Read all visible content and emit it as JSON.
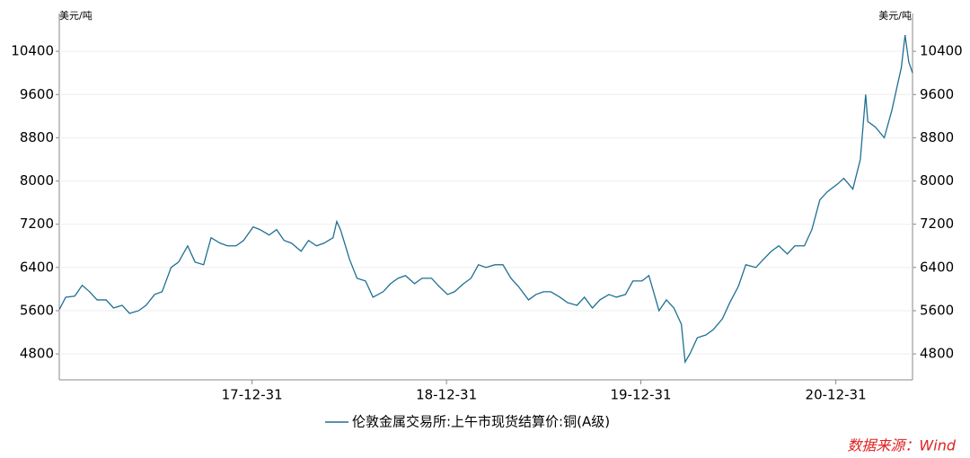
{
  "chart_data": {
    "type": "line",
    "y_label": "美元/吨",
    "y2_label": "美元/吨",
    "source": "数据来源：Wind",
    "grid": true,
    "x": [
      "2017-01-03",
      "2017-01-15",
      "2017-02-01",
      "2017-02-15",
      "2017-03-01",
      "2017-03-15",
      "2017-04-01",
      "2017-04-15",
      "2017-05-01",
      "2017-05-15",
      "2017-06-01",
      "2017-06-15",
      "2017-07-01",
      "2017-07-15",
      "2017-08-01",
      "2017-08-15",
      "2017-09-01",
      "2017-09-15",
      "2017-10-01",
      "2017-10-15",
      "2017-11-01",
      "2017-11-15",
      "2017-12-01",
      "2017-12-15",
      "2018-01-02",
      "2018-01-15",
      "2018-02-01",
      "2018-02-15",
      "2018-03-01",
      "2018-03-15",
      "2018-04-02",
      "2018-04-16",
      "2018-05-01",
      "2018-05-15",
      "2018-06-01",
      "2018-06-08",
      "2018-06-15",
      "2018-07-02",
      "2018-07-16",
      "2018-08-01",
      "2018-08-15",
      "2018-09-03",
      "2018-09-17",
      "2018-10-01",
      "2018-10-15",
      "2018-11-01",
      "2018-11-15",
      "2018-12-03",
      "2018-12-17",
      "2019-01-02",
      "2019-01-15",
      "2019-02-01",
      "2019-02-15",
      "2019-03-01",
      "2019-03-15",
      "2019-04-01",
      "2019-04-16",
      "2019-05-01",
      "2019-05-15",
      "2019-06-03",
      "2019-06-17",
      "2019-07-01",
      "2019-07-15",
      "2019-08-01",
      "2019-08-15",
      "2019-09-02",
      "2019-09-16",
      "2019-10-01",
      "2019-10-15",
      "2019-11-01",
      "2019-11-15",
      "2019-12-02",
      "2019-12-16",
      "2020-01-02",
      "2020-01-15",
      "2020-02-03",
      "2020-02-17",
      "2020-03-02",
      "2020-03-16",
      "2020-03-23",
      "2020-04-01",
      "2020-04-15",
      "2020-05-01",
      "2020-05-15",
      "2020-06-01",
      "2020-06-15",
      "2020-07-01",
      "2020-07-15",
      "2020-08-03",
      "2020-08-17",
      "2020-09-01",
      "2020-09-15",
      "2020-10-01",
      "2020-10-15",
      "2020-11-02",
      "2020-11-16",
      "2020-12-01",
      "2020-12-15",
      "2021-01-04",
      "2021-01-15",
      "2021-02-01",
      "2021-02-15",
      "2021-02-25",
      "2021-03-01",
      "2021-03-15",
      "2021-04-01",
      "2021-04-15",
      "2021-05-03",
      "2021-05-10",
      "2021-05-17",
      "2021-05-24"
    ],
    "series": [
      {
        "name": "伦敦金属交易所:上午市现货结算价:铜(A级)",
        "color": "#1f6f93",
        "values": [
          5620,
          5850,
          5870,
          6070,
          5950,
          5800,
          5800,
          5650,
          5700,
          5550,
          5600,
          5700,
          5900,
          5950,
          6400,
          6500,
          6800,
          6500,
          6450,
          6950,
          6850,
          6800,
          6800,
          6900,
          7150,
          7100,
          7000,
          7100,
          6900,
          6850,
          6700,
          6900,
          6800,
          6850,
          6950,
          7250,
          7100,
          6550,
          6200,
          6150,
          5850,
          5950,
          6100,
          6200,
          6250,
          6100,
          6200,
          6200,
          6050,
          5900,
          5950,
          6100,
          6200,
          6450,
          6400,
          6450,
          6450,
          6200,
          6050,
          5800,
          5900,
          5950,
          5950,
          5850,
          5750,
          5700,
          5850,
          5650,
          5800,
          5900,
          5850,
          5900,
          6150,
          6150,
          6250,
          5600,
          5800,
          5650,
          5350,
          4650,
          4800,
          5100,
          5150,
          5250,
          5450,
          5750,
          6050,
          6450,
          6400,
          6550,
          6700,
          6800,
          6650,
          6800,
          6800,
          7100,
          7650,
          7800,
          7950,
          8050,
          7850,
          8400,
          9600,
          9100,
          9000,
          8800,
          9300,
          10100,
          10700,
          10200,
          10000
        ]
      }
    ],
    "xlim": [
      "2017-01-03",
      "2021-05-24"
    ],
    "xticks": [
      {
        "value": "2017-12-31",
        "label": "17-12-31"
      },
      {
        "value": "2018-12-31",
        "label": "18-12-31"
      },
      {
        "value": "2019-12-31",
        "label": "19-12-31"
      },
      {
        "value": "2020-12-31",
        "label": "20-12-31"
      }
    ],
    "ylim": [
      4320,
      11100
    ],
    "yticks": [
      4800,
      5600,
      6400,
      7200,
      8000,
      8800,
      9600,
      10400
    ],
    "y2lim": [
      4320,
      11100
    ],
    "y2ticks": [
      4800,
      5600,
      6400,
      7200,
      8000,
      8800,
      9600,
      10400
    ]
  }
}
